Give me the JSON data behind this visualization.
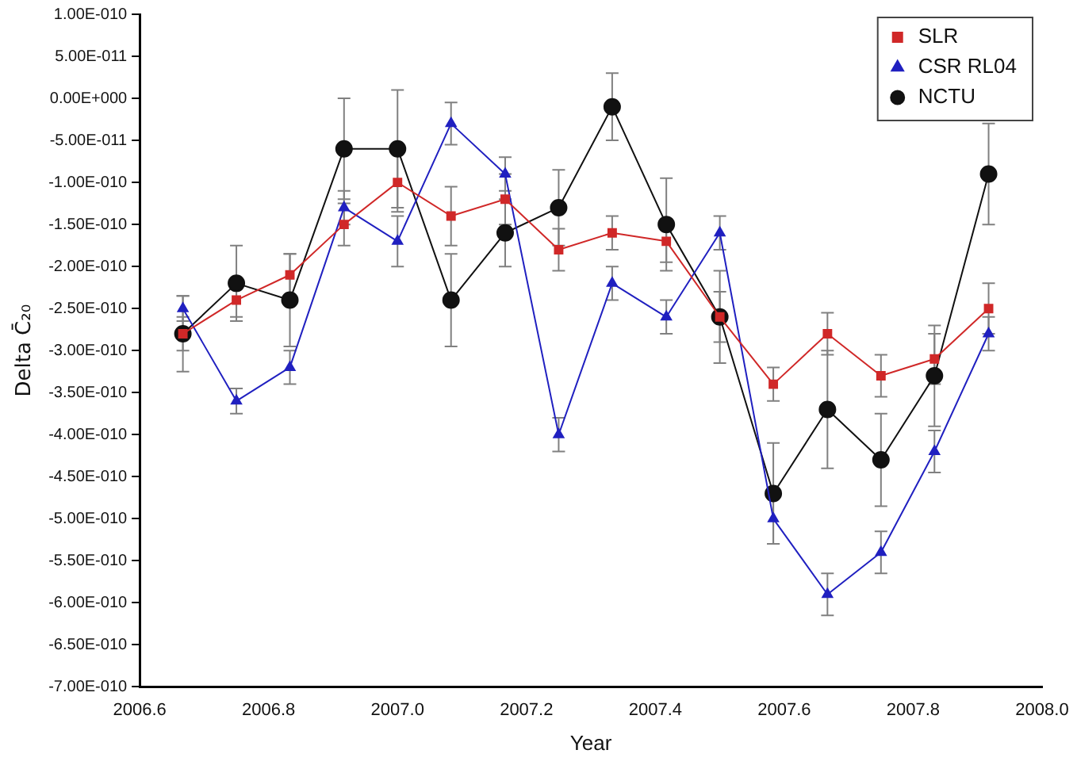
{
  "chart_data": {
    "type": "line",
    "xlabel": "Year",
    "ylabel": "Delta C̄₂₀",
    "x": [
      2006.667,
      2006.75,
      2006.833,
      2006.917,
      2007.0,
      2007.083,
      2007.167,
      2007.25,
      2007.333,
      2007.417,
      2007.5,
      2007.583,
      2007.667,
      2007.75,
      2007.833,
      2007.917
    ],
    "series": [
      {
        "name": "SLR",
        "color": "#d02828",
        "marker": "square",
        "values": [
          -2.8e-10,
          -2.4e-10,
          -2.1e-10,
          -1.5e-10,
          -1e-10,
          -1.4e-10,
          -1.2e-10,
          -1.8e-10,
          -1.6e-10,
          -1.7e-10,
          -2.6e-10,
          -3.4e-10,
          -2.8e-10,
          -3.3e-10,
          -3.1e-10,
          -2.5e-10
        ],
        "errors": [
          2e-11,
          2e-11,
          2.5e-11,
          2.5e-11,
          3.5e-11,
          3.5e-11,
          3e-11,
          2.5e-11,
          2e-11,
          2.5e-11,
          3e-11,
          2e-11,
          2.5e-11,
          2.5e-11,
          3e-11,
          3e-11
        ]
      },
      {
        "name": "CSR RL04",
        "color": "#2020c0",
        "marker": "triangle",
        "values": [
          -2.5e-10,
          -3.6e-10,
          -3.2e-10,
          -1.3e-10,
          -1.7e-10,
          -3e-11,
          -9e-11,
          -4e-10,
          -2.2e-10,
          -2.6e-10,
          -1.6e-10,
          -5e-10,
          -5.9e-10,
          -5.4e-10,
          -4.2e-10,
          -2.8e-10
        ],
        "errors": [
          1.5e-11,
          1.5e-11,
          2e-11,
          2e-11,
          3e-11,
          2.5e-11,
          2e-11,
          2e-11,
          2e-11,
          2e-11,
          2e-11,
          3e-11,
          2.5e-11,
          2.5e-11,
          2.5e-11,
          2e-11
        ]
      },
      {
        "name": "NCTU",
        "color": "#111111",
        "marker": "circle",
        "values": [
          -2.8e-10,
          -2.2e-10,
          -2.4e-10,
          -6e-11,
          -6e-11,
          -2.4e-10,
          -1.6e-10,
          -1.3e-10,
          -1e-11,
          -1.5e-10,
          -2.6e-10,
          -4.7e-10,
          -3.7e-10,
          -4.3e-10,
          -3.3e-10,
          -9e-11
        ],
        "errors": [
          4.5e-11,
          4.5e-11,
          5.5e-11,
          6e-11,
          7e-11,
          5.5e-11,
          4e-11,
          4.5e-11,
          4e-11,
          5.5e-11,
          5.5e-11,
          6e-11,
          7e-11,
          5.5e-11,
          6e-11,
          6e-11
        ]
      }
    ],
    "xlim": [
      2006.6,
      2008.0
    ],
    "xticks": [
      {
        "value": 2006.6,
        "label": "2006.6"
      },
      {
        "value": 2006.8,
        "label": "2006.8"
      },
      {
        "value": 2007.0,
        "label": "2007.0"
      },
      {
        "value": 2007.2,
        "label": "2007.2"
      },
      {
        "value": 2007.4,
        "label": "2007.4"
      },
      {
        "value": 2007.6,
        "label": "2007.6"
      },
      {
        "value": 2007.8,
        "label": "2007.8"
      },
      {
        "value": 2008.0,
        "label": "2008.0"
      }
    ],
    "ylim": [
      -7e-10,
      1e-10
    ],
    "yticks": [
      {
        "value": 1e-10,
        "label": "1.00E-010"
      },
      {
        "value": 5e-11,
        "label": "5.00E-011"
      },
      {
        "value": 0,
        "label": "0.00E+000"
      },
      {
        "value": -5e-11,
        "label": "-5.00E-011"
      },
      {
        "value": -1e-10,
        "label": "-1.00E-010"
      },
      {
        "value": -1.5e-10,
        "label": "-1.50E-010"
      },
      {
        "value": -2e-10,
        "label": "-2.00E-010"
      },
      {
        "value": -2.5e-10,
        "label": "-2.50E-010"
      },
      {
        "value": -3e-10,
        "label": "-3.00E-010"
      },
      {
        "value": -3.5e-10,
        "label": "-3.50E-010"
      },
      {
        "value": -4e-10,
        "label": "-4.00E-010"
      },
      {
        "value": -4.5e-10,
        "label": "-4.50E-010"
      },
      {
        "value": -5e-10,
        "label": "-5.00E-010"
      },
      {
        "value": -5.5e-10,
        "label": "-5.50E-010"
      },
      {
        "value": -6e-10,
        "label": "-6.00E-010"
      },
      {
        "value": -6.5e-10,
        "label": "-6.50E-010"
      },
      {
        "value": -7e-10,
        "label": "-7.00E-010"
      }
    ],
    "grid": false,
    "legend": "top right"
  }
}
